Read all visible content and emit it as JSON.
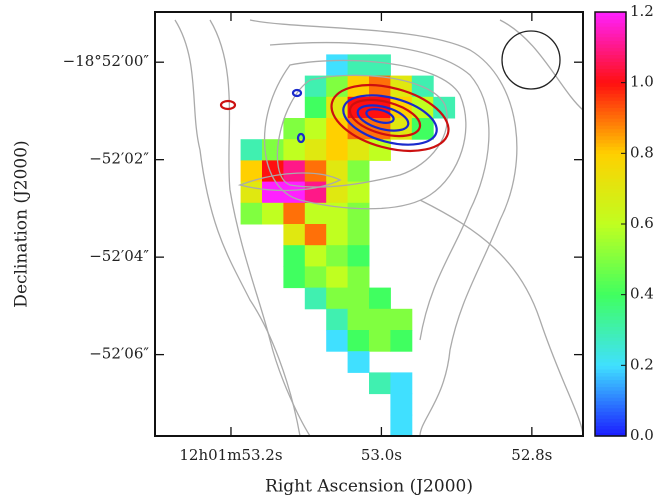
{
  "chart_data": {
    "type": "heatmap",
    "xlabel": "Right Ascension (J2000)",
    "ylabel": "Declination (J2000)",
    "xlim": [
      53.301,
      52.732
    ],
    "xticks": [
      {
        "value": 53.2,
        "label": "12h01m53.2s"
      },
      {
        "value": 53.0,
        "label": "53.0s"
      },
      {
        "value": 52.8,
        "label": "52.8s"
      }
    ],
    "ylim": [
      7.67,
      -1.03
    ],
    "yticks": [
      {
        "value": 0,
        "label": "−18°52′00″"
      },
      {
        "value": 2,
        "label": "−52′02″"
      },
      {
        "value": 4,
        "label": "−52′04″"
      },
      {
        "value": 6,
        "label": "−52′06″"
      }
    ],
    "colorbar_lim": [
      0,
      1.2
    ],
    "colorbar_ticks": [
      {
        "value": 0,
        "label": "0.0"
      },
      0.2,
      0.4,
      0.6,
      0.8,
      {
        "value": 1,
        "label": "1.0"
      },
      1.2
    ],
    "cmap": [
      "#1a1aff",
      "#40e0ff",
      "#40ff60",
      "#c0ff20",
      "#ffd000",
      "#ff1010",
      "#ff20ff"
    ],
    "z": [
      [
        null,
        null,
        null,
        null,
        null,
        null,
        null,
        null,
        null,
        null,
        null,
        null,
        null,
        null,
        null,
        null,
        null,
        null,
        null,
        null
      ],
      [
        null,
        null,
        null,
        null,
        null,
        null,
        null,
        null,
        null,
        null,
        null,
        null,
        null,
        null,
        null,
        null,
        null,
        null,
        null,
        null
      ],
      [
        null,
        null,
        null,
        null,
        null,
        null,
        null,
        null,
        0.2,
        0.3,
        0.3,
        null,
        null,
        null,
        null,
        null,
        null,
        null,
        null,
        null
      ],
      [
        null,
        null,
        null,
        null,
        null,
        null,
        null,
        0.3,
        0.5,
        0.8,
        0.9,
        0.7,
        0.3,
        null,
        null,
        null,
        null,
        null,
        null,
        null
      ],
      [
        null,
        null,
        null,
        null,
        null,
        null,
        null,
        0.4,
        0.7,
        1.0,
        1.0,
        0.8,
        0.6,
        0.3,
        null,
        null,
        null,
        null,
        null,
        null
      ],
      [
        null,
        null,
        null,
        null,
        null,
        null,
        0.5,
        0.6,
        0.8,
        0.9,
        0.9,
        0.7,
        0.4,
        null,
        null,
        null,
        null,
        null,
        null,
        null
      ],
      [
        null,
        null,
        null,
        null,
        0.3,
        0.5,
        0.6,
        0.7,
        0.8,
        0.7,
        0.6,
        null,
        null,
        null,
        null,
        null,
        null,
        null,
        null,
        null
      ],
      [
        null,
        null,
        null,
        null,
        0.8,
        1.0,
        1.1,
        0.9,
        0.7,
        0.5,
        null,
        null,
        null,
        null,
        null,
        null,
        null,
        null,
        null,
        null
      ],
      [
        null,
        null,
        null,
        null,
        0.7,
        1.2,
        1.2,
        1.1,
        0.7,
        0.6,
        null,
        null,
        null,
        null,
        null,
        null,
        null,
        null,
        null,
        null
      ],
      [
        null,
        null,
        null,
        null,
        0.5,
        0.6,
        0.9,
        0.6,
        0.6,
        0.5,
        null,
        null,
        null,
        null,
        null,
        null,
        null,
        null,
        null,
        null
      ],
      [
        null,
        null,
        null,
        null,
        null,
        null,
        0.7,
        0.9,
        0.6,
        0.5,
        null,
        null,
        null,
        null,
        null,
        null,
        null,
        null,
        null,
        null
      ],
      [
        null,
        null,
        null,
        null,
        null,
        null,
        0.4,
        0.6,
        0.5,
        0.4,
        null,
        null,
        null,
        null,
        null,
        null,
        null,
        null,
        null,
        null
      ],
      [
        null,
        null,
        null,
        null,
        null,
        null,
        0.4,
        0.5,
        0.6,
        0.5,
        null,
        null,
        null,
        null,
        null,
        null,
        null,
        null,
        null,
        null
      ],
      [
        null,
        null,
        null,
        null,
        null,
        null,
        null,
        0.3,
        0.5,
        0.5,
        0.4,
        null,
        null,
        null,
        null,
        null,
        null,
        null,
        null,
        null
      ],
      [
        null,
        null,
        null,
        null,
        null,
        null,
        null,
        null,
        0.3,
        0.5,
        0.5,
        0.5,
        null,
        null,
        null,
        null,
        null,
        null,
        null,
        null
      ],
      [
        null,
        null,
        null,
        null,
        null,
        null,
        null,
        null,
        0.2,
        0.4,
        0.5,
        0.4,
        null,
        null,
        null,
        null,
        null,
        null,
        null,
        null
      ],
      [
        null,
        null,
        null,
        null,
        null,
        null,
        null,
        null,
        null,
        0.2,
        null,
        null,
        null,
        null,
        null,
        null,
        null,
        null,
        null,
        null
      ],
      [
        null,
        null,
        null,
        null,
        null,
        null,
        null,
        null,
        null,
        null,
        0.3,
        0.2,
        null,
        null,
        null,
        null,
        null,
        null,
        null,
        null
      ],
      [
        null,
        null,
        null,
        null,
        null,
        null,
        null,
        null,
        null,
        null,
        null,
        0.2,
        null,
        null,
        null,
        null,
        null,
        null,
        null,
        null
      ],
      [
        null,
        null,
        null,
        null,
        null,
        null,
        null,
        null,
        null,
        null,
        null,
        0.2,
        null,
        null,
        null,
        null,
        null,
        null,
        null,
        null
      ]
    ]
  }
}
